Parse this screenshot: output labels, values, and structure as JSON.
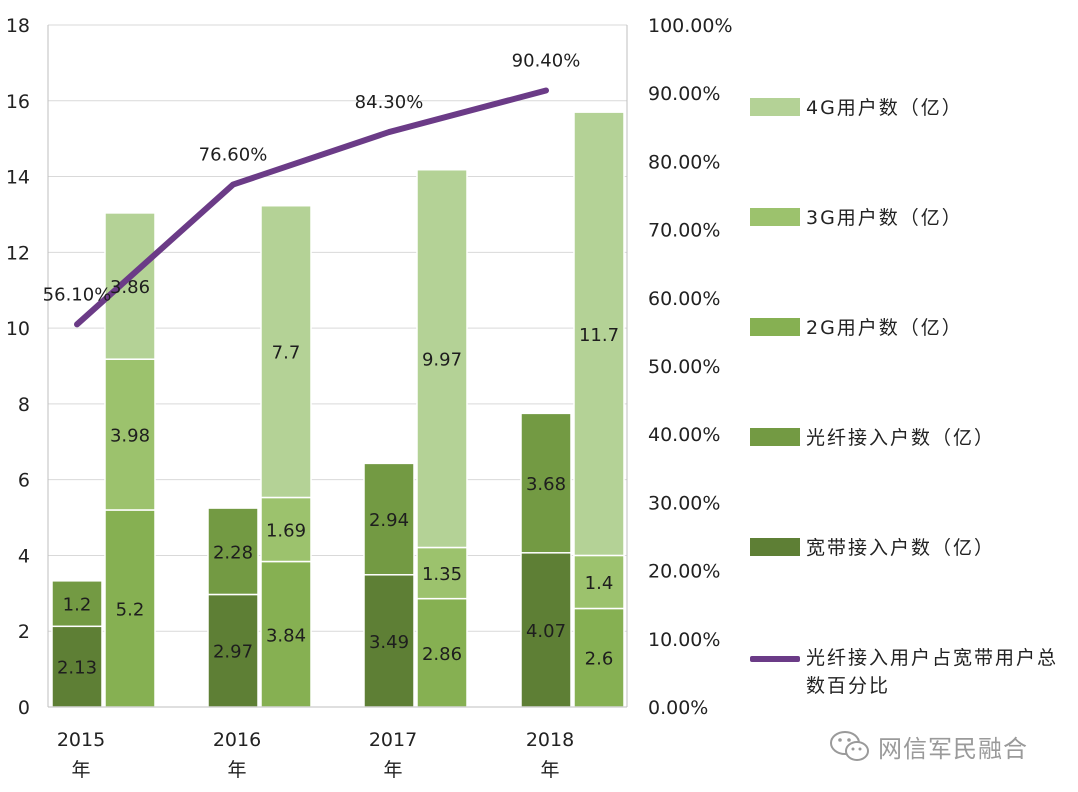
{
  "chart_data": {
    "type": "bar",
    "categories": [
      "2015\n年",
      "2016\n年",
      "2017\n年",
      "2018\n年"
    ],
    "y_left": {
      "min": 0,
      "max": 18,
      "step": 2,
      "ticks": [
        "0",
        "2",
        "4",
        "6",
        "8",
        "10",
        "12",
        "14",
        "16",
        "18"
      ]
    },
    "y_right": {
      "min": 0,
      "max": 100,
      "step": 10,
      "ticks": [
        "0.00%",
        "10.00%",
        "20.00%",
        "30.00%",
        "40.00%",
        "50.00%",
        "60.00%",
        "70.00%",
        "80.00%",
        "90.00%",
        "100.00%"
      ]
    },
    "stacks": [
      {
        "name": "left",
        "series": [
          {
            "name": "宽带接入户数（亿）",
            "values": [
              2.13,
              2.97,
              3.49,
              4.07
            ],
            "labels": [
              "2.13",
              "2.97",
              "3.49",
              "4.07"
            ],
            "color": "#5e7f35"
          },
          {
            "name": "光纤接入户数（亿）",
            "values": [
              1.2,
              2.28,
              2.94,
              3.68
            ],
            "labels": [
              "1.2",
              "2.28",
              "2.94",
              "3.68"
            ],
            "color": "#739a43"
          }
        ]
      },
      {
        "name": "right",
        "series": [
          {
            "name": "2G用户数（亿）",
            "values": [
              5.2,
              3.84,
              2.86,
              2.6
            ],
            "labels": [
              "5.2",
              "3.84",
              "2.86",
              "2.6"
            ],
            "color": "#86b052"
          },
          {
            "name": "3G用户数（亿）",
            "values": [
              3.98,
              1.69,
              1.35,
              1.4
            ],
            "labels": [
              "3.98",
              "1.69",
              "1.35",
              "1.4"
            ],
            "color": "#9cc26d"
          },
          {
            "name": "4G用户数（亿）",
            "values": [
              3.86,
              7.7,
              9.97,
              11.7
            ],
            "labels": [
              "3.86",
              "7.7",
              "9.97",
              "11.7"
            ],
            "color": "#b4d296"
          }
        ]
      }
    ],
    "line": {
      "name": "光纤接入用户占宽带用户总数百分比",
      "values": [
        56.1,
        76.6,
        84.3,
        90.4
      ],
      "labels": [
        "56.10%",
        "76.60%",
        "84.30%",
        "90.40%"
      ],
      "color": "#6b3b87"
    },
    "legend_position": "right",
    "grid": true
  },
  "legend": [
    {
      "label": "4G用户数（亿）",
      "color": "#b4d296",
      "kind": "bar"
    },
    {
      "label": "3G用户数（亿）",
      "color": "#9cc26d",
      "kind": "bar"
    },
    {
      "label": "2G用户数（亿）",
      "color": "#86b052",
      "kind": "bar"
    },
    {
      "label": "光纤接入户数（亿）",
      "color": "#739a43",
      "kind": "bar"
    },
    {
      "label": "宽带接入户数（亿）",
      "color": "#5e7f35",
      "kind": "bar"
    },
    {
      "label": "光纤接入用户占宽带用户总数百分比",
      "color": "#6b3b87",
      "kind": "line"
    }
  ],
  "watermark": {
    "text": "网信军民融合",
    "icon": "wechat-icon"
  }
}
